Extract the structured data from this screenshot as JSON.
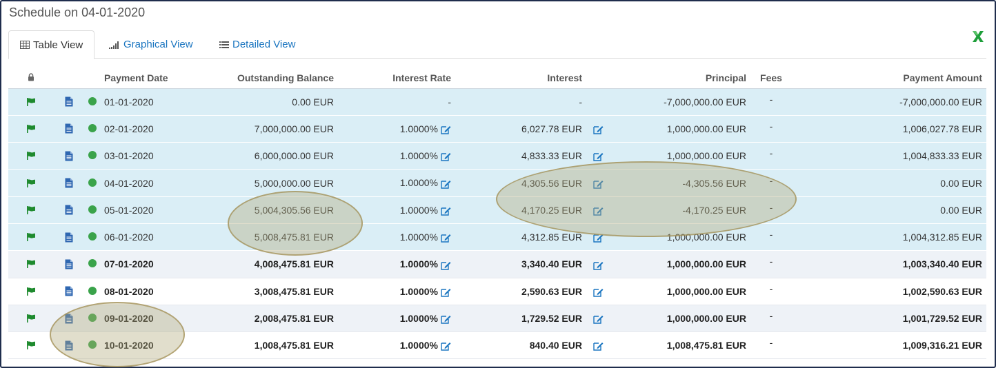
{
  "title": "Schedule on 04-01-2020",
  "tabs": [
    {
      "label": "Table View",
      "icon": "table-icon"
    },
    {
      "label": "Graphical View",
      "icon": "bar-chart-icon"
    },
    {
      "label": "Detailed View",
      "icon": "list-icon"
    }
  ],
  "export_icon": "excel-icon",
  "columns": {
    "lock_icon": "lock-icon",
    "payment_date": "Payment Date",
    "outstanding_balance": "Outstanding Balance",
    "interest_rate": "Interest Rate",
    "interest": "Interest",
    "principal": "Principal",
    "fees": "Fees",
    "payment_amount": "Payment Amount"
  },
  "colors": {
    "past_row": "#daeef6",
    "status_dot": "#3aa34a",
    "flag": "#1e8a2e",
    "doc": "#2f67b1",
    "link": "#1a75c0"
  },
  "rows": [
    {
      "date": "01-01-2020",
      "balance": "0.00 EUR",
      "rate": "-",
      "interest": "-",
      "principal": "-7,000,000.00 EUR",
      "fees": "-",
      "payment": "-7,000,000.00 EUR"
    },
    {
      "date": "02-01-2020",
      "balance": "7,000,000.00 EUR",
      "rate": "1.0000%",
      "interest": "6,027.78 EUR",
      "principal": "1,000,000.00 EUR",
      "fees": "-",
      "payment": "1,006,027.78 EUR"
    },
    {
      "date": "03-01-2020",
      "balance": "6,000,000.00 EUR",
      "rate": "1.0000%",
      "interest": "4,833.33 EUR",
      "principal": "1,000,000.00 EUR",
      "fees": "-",
      "payment": "1,004,833.33 EUR"
    },
    {
      "date": "04-01-2020",
      "balance": "5,000,000.00 EUR",
      "rate": "1.0000%",
      "interest": "4,305.56 EUR",
      "principal": "-4,305.56 EUR",
      "fees": "-",
      "payment": "0.00 EUR"
    },
    {
      "date": "05-01-2020",
      "balance": "5,004,305.56 EUR",
      "rate": "1.0000%",
      "interest": "4,170.25 EUR",
      "principal": "-4,170.25 EUR",
      "fees": "-",
      "payment": "0.00 EUR"
    },
    {
      "date": "06-01-2020",
      "balance": "5,008,475.81 EUR",
      "rate": "1.0000%",
      "interest": "4,312.85 EUR",
      "principal": "1,000,000.00 EUR",
      "fees": "-",
      "payment": "1,004,312.85 EUR"
    },
    {
      "date": "07-01-2020",
      "balance": "4,008,475.81 EUR",
      "rate": "1.0000%",
      "interest": "3,340.40 EUR",
      "principal": "1,000,000.00 EUR",
      "fees": "-",
      "payment": "1,003,340.40 EUR"
    },
    {
      "date": "08-01-2020",
      "balance": "3,008,475.81 EUR",
      "rate": "1.0000%",
      "interest": "2,590.63 EUR",
      "principal": "1,000,000.00 EUR",
      "fees": "-",
      "payment": "1,002,590.63 EUR"
    },
    {
      "date": "09-01-2020",
      "balance": "2,008,475.81 EUR",
      "rate": "1.0000%",
      "interest": "1,729.52 EUR",
      "principal": "1,000,000.00 EUR",
      "fees": "-",
      "payment": "1,001,729.52 EUR"
    },
    {
      "date": "10-01-2020",
      "balance": "1,008,475.81 EUR",
      "rate": "1.0000%",
      "interest": "840.40 EUR",
      "principal": "1,008,475.81 EUR",
      "fees": "-",
      "payment": "1,009,316.21 EUR"
    }
  ]
}
